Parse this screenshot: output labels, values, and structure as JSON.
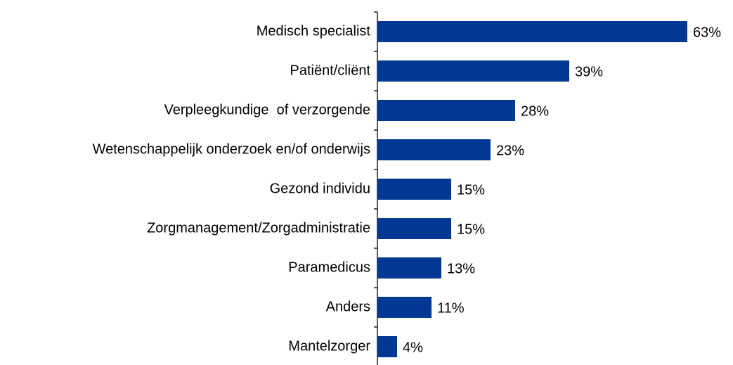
{
  "chart_data": {
    "type": "bar",
    "orientation": "horizontal",
    "categories": [
      "Medisch specialist",
      "Patiënt/cliënt",
      "Verpleegkundige  of verzorgende",
      "Wetenschappelijk onderzoek en/of onderwijs",
      "Gezond individu",
      "Zorgmanagement/Zorgadministratie",
      "Paramedicus",
      "Anders",
      "Mantelzorger"
    ],
    "values": [
      63,
      39,
      28,
      23,
      15,
      15,
      13,
      11,
      4
    ],
    "value_labels": [
      "63%",
      "39%",
      "28%",
      "23%",
      "15%",
      "15%",
      "13%",
      "11%",
      "4%"
    ],
    "color": "#003893"
  }
}
